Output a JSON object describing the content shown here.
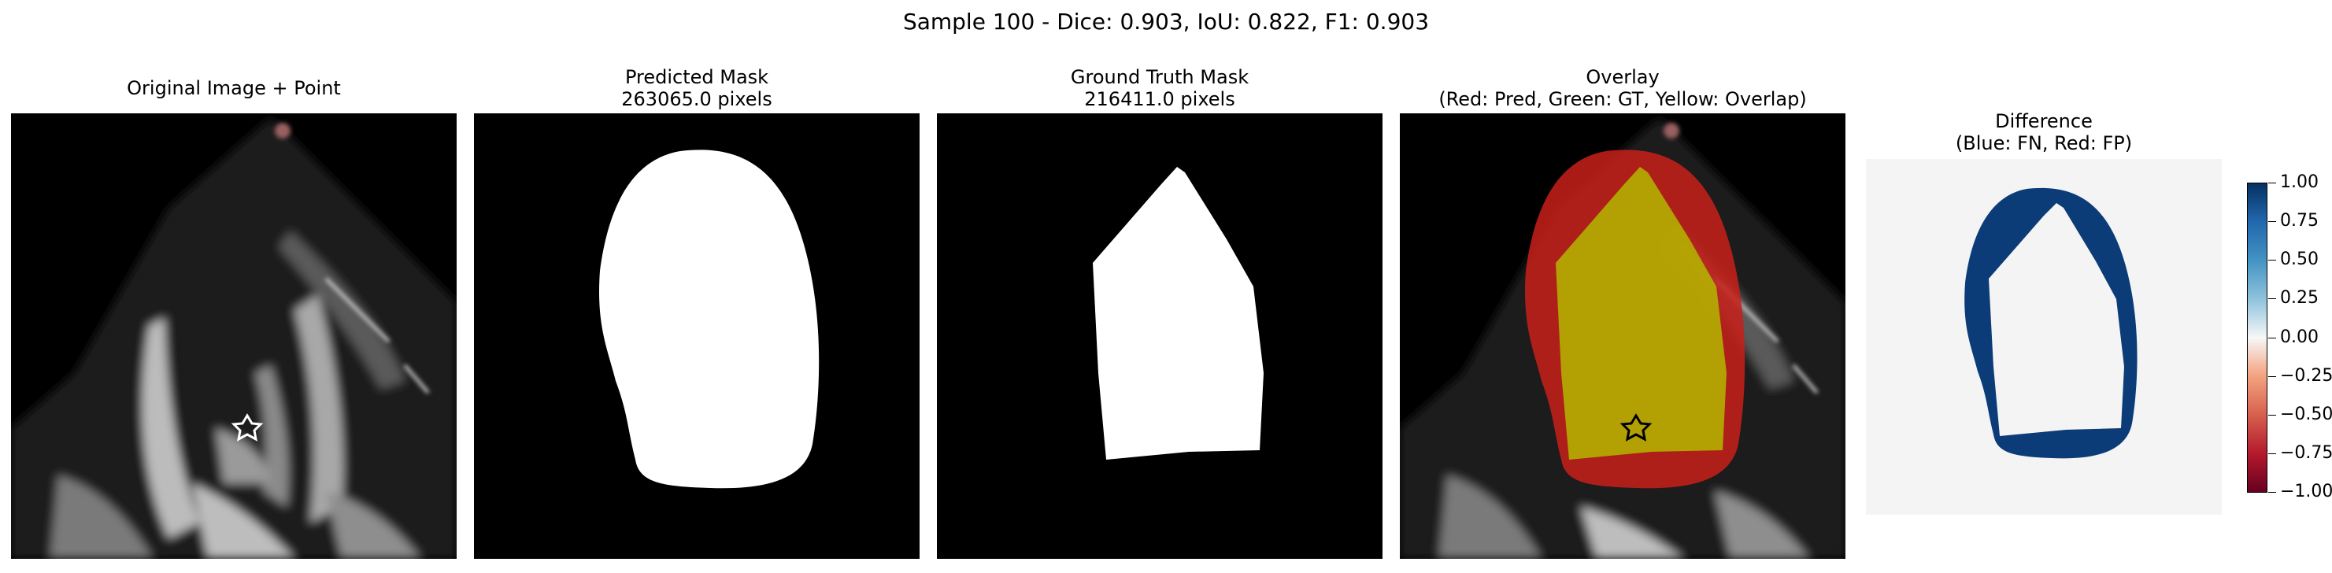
{
  "figure": {
    "suptitle": "Sample 100 - Dice: 0.903, IoU: 0.822, F1: 0.903"
  },
  "panels": [
    {
      "title_line1": "Original Image + Point",
      "title_line2": ""
    },
    {
      "title_line1": "Predicted Mask",
      "title_line2": "263065.0 pixels"
    },
    {
      "title_line1": "Ground Truth Mask",
      "title_line2": "216411.0 pixels"
    },
    {
      "title_line1": "Overlay",
      "title_line2": "(Red: Pred, Green: GT, Yellow: Overlap)"
    },
    {
      "title_line1": "Difference",
      "title_line2": "(Blue: FN, Red: FP)"
    }
  ],
  "colorbar": {
    "colormap": "RdBu",
    "ticks": [
      "1.00",
      "0.75",
      "0.50",
      "0.25",
      "0.00",
      "−0.25",
      "−0.50",
      "−0.75",
      "−1.00"
    ]
  },
  "colors": {
    "mask": "#ffffff",
    "pred_overlay": "#c8201a",
    "overlap_overlay": "#b4b400",
    "fn": "#0b3c78",
    "star": "#ffffff"
  }
}
